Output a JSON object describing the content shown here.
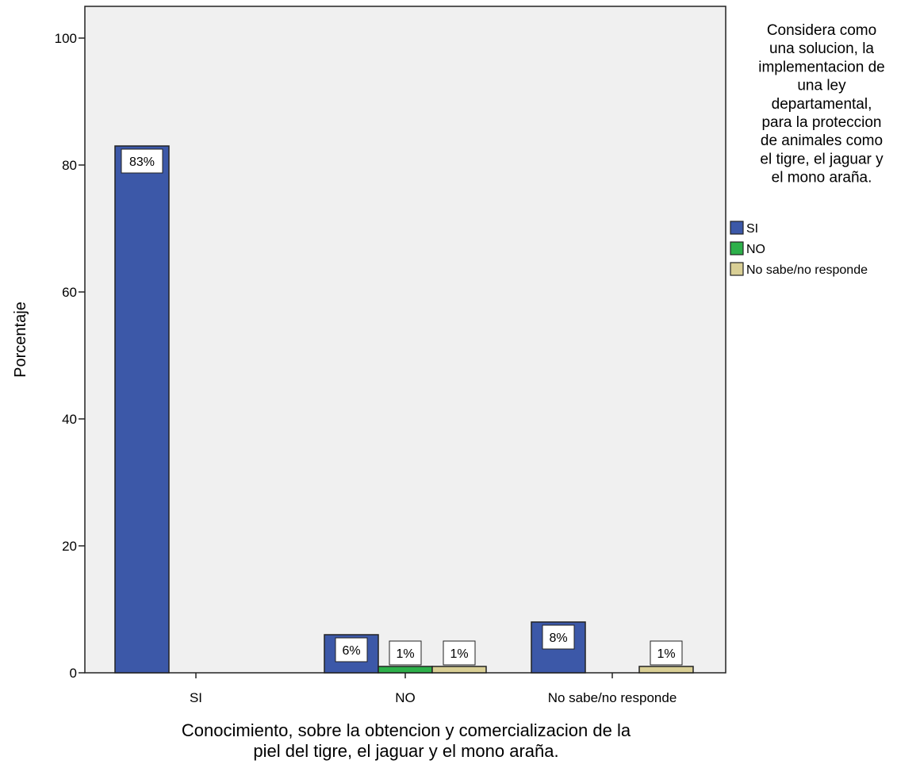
{
  "chart_data": {
    "type": "bar",
    "categories": [
      "SI",
      "NO",
      "No sabe/no responde"
    ],
    "series": [
      {
        "name": "SI",
        "color": "#3c58a8",
        "values": [
          83,
          6,
          8
        ],
        "labels": [
          "83%",
          "6%",
          "8%"
        ]
      },
      {
        "name": "NO",
        "color": "#2db04a",
        "values": [
          0,
          1,
          0
        ],
        "labels": [
          "",
          "1%",
          ""
        ]
      },
      {
        "name": "No sabe/no responde",
        "color": "#d9cf95",
        "values": [
          0,
          1,
          1
        ],
        "labels": [
          "",
          "1%",
          "1%"
        ]
      }
    ],
    "ylabel": "Porcentaje",
    "xlabel": "Conocimiento, sobre la obtencion y comercializacion de la piel del tigre, el jaguar y el mono araña.",
    "xlabel_lines": [
      "Conocimiento, sobre la obtencion y comercializacion de la",
      "piel del tigre, el jaguar y el mono araña."
    ],
    "ylim": [
      0,
      105
    ],
    "yticks": [
      0,
      20,
      40,
      60,
      80,
      100
    ],
    "grid": false,
    "plot_background": "#f0f0f0",
    "legend": {
      "placement": "right",
      "title": "Considera como una solucion, la implementacion de una ley departamental, para la proteccion de animales como el tigre, el jaguar y el mono araña.",
      "title_lines": [
        "Considera como",
        "una solucion, la",
        "implementacion de",
        "una ley",
        "departamental,",
        "para la proteccion",
        "de animales como",
        "el tigre, el jaguar y",
        "el mono araña."
      ],
      "entries": [
        "SI",
        "NO",
        "No sabe/no responde"
      ]
    }
  }
}
